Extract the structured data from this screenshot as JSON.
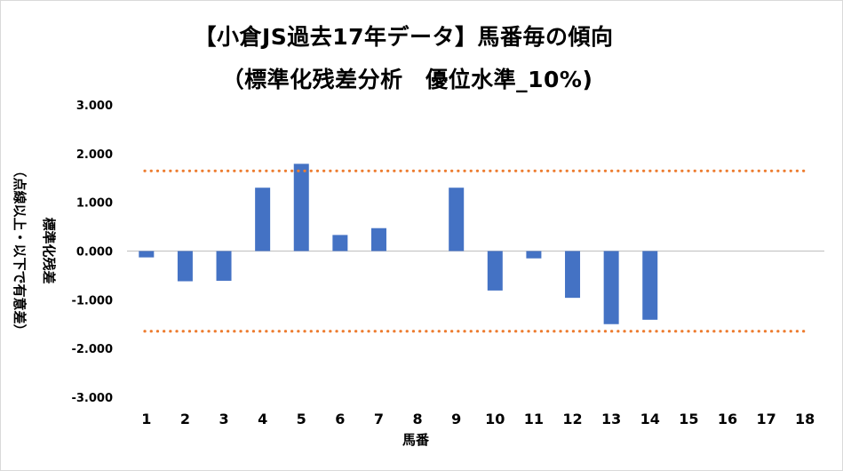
{
  "chart_data": {
    "type": "bar",
    "title": "【小倉JS過去17年データ】馬番毎の傾向",
    "subtitle": "（標準化残差分析　優位水準_10%)",
    "xlabel": "馬番",
    "ylabel": "標準化残差",
    "ylabel_note": "（点線以上・以下で有意差）",
    "categories": [
      "1",
      "2",
      "3",
      "4",
      "5",
      "6",
      "7",
      "8",
      "9",
      "10",
      "11",
      "12",
      "13",
      "14",
      "15",
      "16",
      "17",
      "18"
    ],
    "series": [
      {
        "values": [
          -0.13,
          -0.62,
          -0.61,
          1.3,
          1.79,
          0.33,
          0.47,
          0.0,
          1.3,
          -0.81,
          -0.15,
          -0.96,
          -1.5,
          -1.41,
          0.0,
          0.0,
          0.0,
          0.0
        ],
        "color": "#4472c4"
      }
    ],
    "reference_lines": [
      1.645,
      -1.645
    ],
    "reference_line_color": "#ed7d31",
    "reference_line_style": "dotted",
    "ylim": [
      -3,
      3
    ],
    "yticks": [
      "3.000",
      "2.000",
      "1.000",
      "0.000",
      "-1.000",
      "-2.000",
      "-3.000"
    ],
    "grid": false,
    "legend": "none"
  }
}
